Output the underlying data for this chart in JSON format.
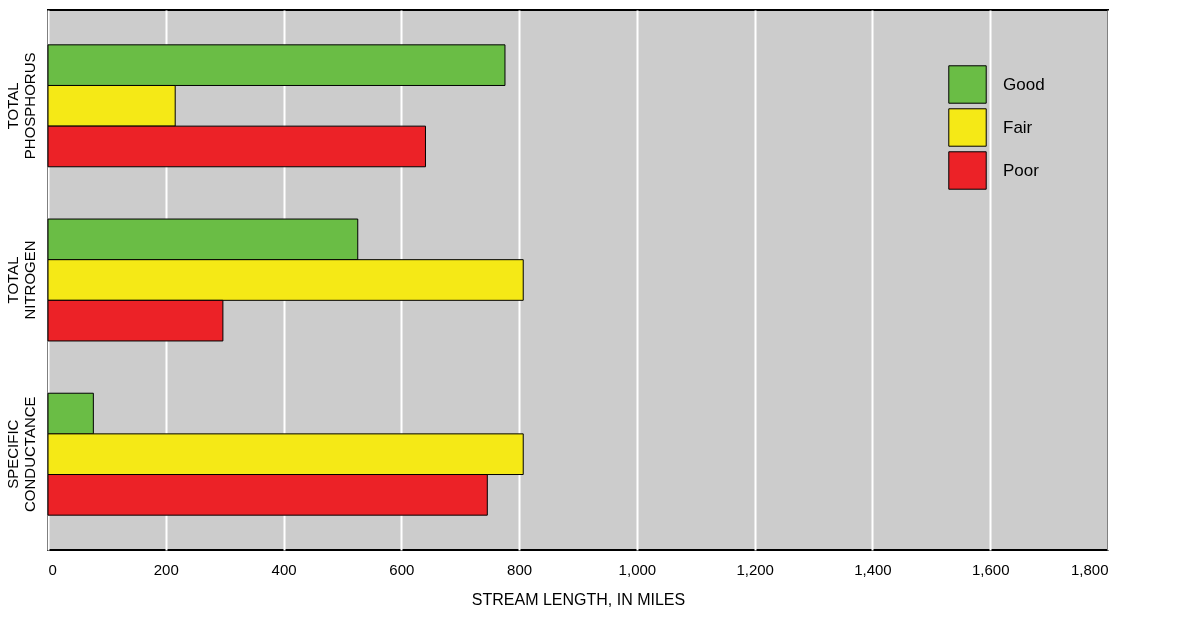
{
  "chart_data": {
    "type": "bar",
    "orientation": "horizontal",
    "xlabel": "STREAM LENGTH, IN MILES",
    "categories": [
      "TOTAL PHOSPHORUS",
      "TOTAL NITROGEN",
      "SPECIFIC CONDUCTANCE"
    ],
    "series": [
      {
        "name": "Good",
        "color": "#6abd45",
        "values": [
          776,
          526,
          77
        ]
      },
      {
        "name": "Fair",
        "color": "#f5e916",
        "values": [
          216,
          807,
          807
        ]
      },
      {
        "name": "Poor",
        "color": "#ec2227",
        "values": [
          641,
          297,
          746
        ]
      }
    ],
    "xlim": [
      0,
      1800
    ],
    "xticks": [
      0,
      200,
      400,
      600,
      800,
      {
        "value": 1000,
        "label": "1,000"
      },
      {
        "value": 1200,
        "label": "1,200"
      },
      {
        "value": 1400,
        "label": "1,400"
      },
      {
        "value": 1600,
        "label": "1,600"
      },
      {
        "value": 1800,
        "label": "1,800"
      }
    ],
    "grid": "x",
    "legend": "top right"
  }
}
